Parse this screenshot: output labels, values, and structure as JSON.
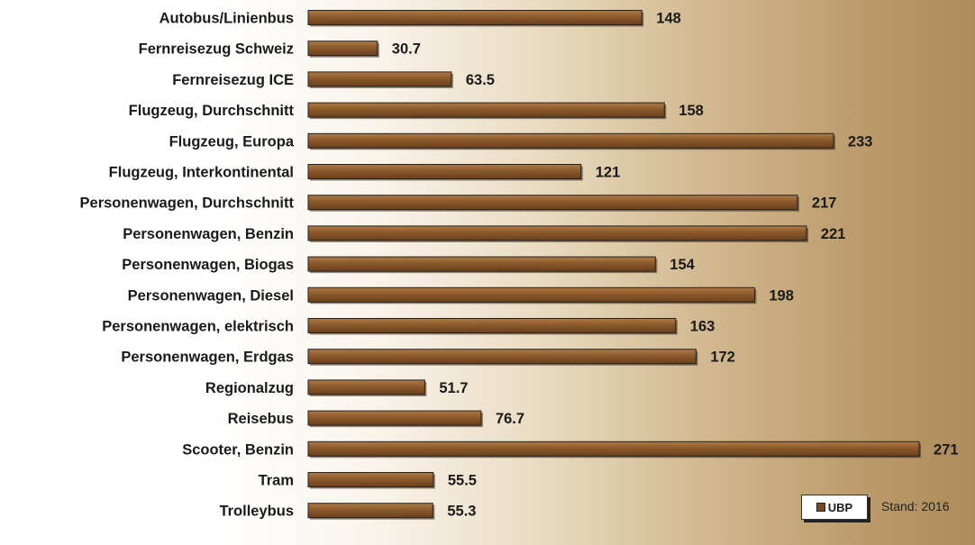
{
  "chart_data": {
    "type": "bar",
    "orientation": "horizontal",
    "categories": [
      "Autobus/Linienbus",
      "Fernreisezug Schweiz",
      "Fernreisezug ICE",
      "Flugzeug, Durchschnitt",
      "Flugzeug, Europa",
      "Flugzeug, Interkontinental",
      "Personenwagen, Durchschnitt",
      "Personenwagen, Benzin",
      "Personenwagen, Biogas",
      "Personenwagen, Diesel",
      "Personenwagen, elektrisch",
      "Personenwagen, Erdgas",
      "Regionalzug",
      "Reisebus",
      "Scooter, Benzin",
      "Tram",
      "Trolleybus"
    ],
    "series": [
      {
        "name": "UBP",
        "values": [
          148,
          30.7,
          63.5,
          158,
          233,
          121,
          217,
          221,
          154,
          198,
          163,
          172,
          51.7,
          76.7,
          271,
          55.5,
          55.3
        ],
        "labels": [
          "148",
          "30.7",
          "63.5",
          "158",
          "233",
          "121",
          "217",
          "221",
          "154",
          "198",
          "163",
          "172",
          "51.7",
          "76.7",
          "271",
          "55.5",
          "55.3"
        ]
      }
    ],
    "title": "",
    "xlabel": "",
    "ylabel": "",
    "xlim": [
      0,
      271
    ],
    "grid": false,
    "legend_position": "bottom-right",
    "note": "Stand: 2016",
    "colors": {
      "bar": "#8b5a2b",
      "bar_dark": "#6b4020",
      "bar_light": "#a8703d",
      "outline": "#222222"
    }
  }
}
